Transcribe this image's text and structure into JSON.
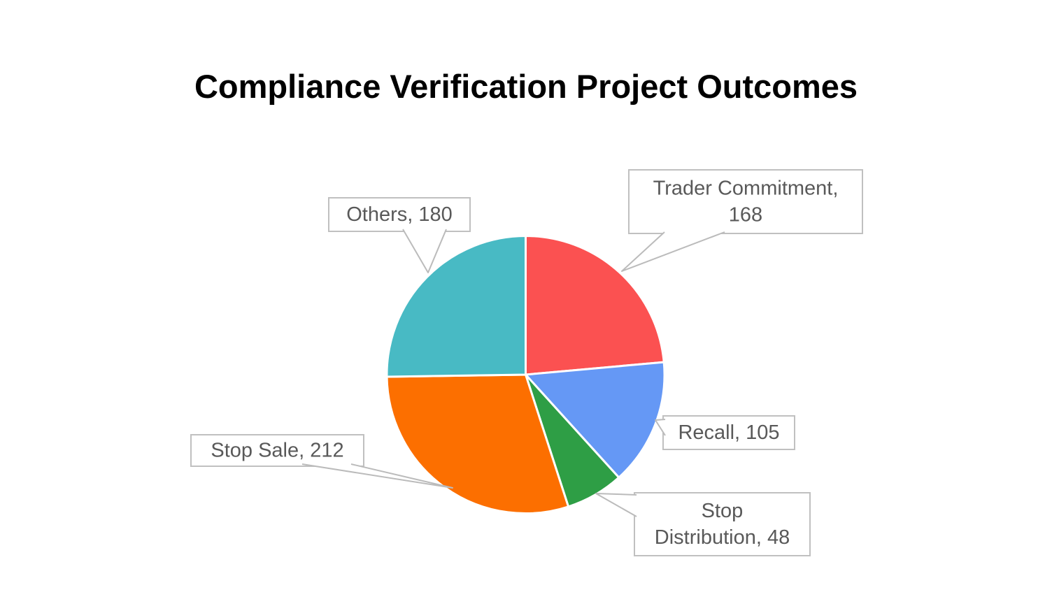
{
  "chart_data": {
    "type": "pie",
    "title": "Compliance Verification Project Outcomes",
    "start_angle_deg": 0,
    "direction": "clockwise",
    "legend_position": "none",
    "label_format": "name, value",
    "slices": [
      {
        "label": "Trader Commitment",
        "value": 168,
        "color": "#FB5151"
      },
      {
        "label": "Recall",
        "value": 105,
        "color": "#6598F5"
      },
      {
        "label": "Stop Distribution",
        "value": 48,
        "color": "#2E9E45"
      },
      {
        "label": "Stop Sale",
        "value": 212,
        "color": "#FC6F00"
      },
      {
        "label": "Others",
        "value": 180,
        "color": "#48BAC4"
      }
    ],
    "callout_labels": [
      "Trader Commitment, 168",
      "Recall, 105",
      "Stop Distribution, 48",
      "Stop Sale, 212",
      "Others, 180"
    ],
    "colors": {
      "slice_separator": "#FFFFFF",
      "callout_border": "#C0C0C0",
      "callout_fill": "#FFFFFF",
      "callout_text": "#595959",
      "leader_line": "#BBBBBB",
      "title_text": "#000000"
    }
  }
}
